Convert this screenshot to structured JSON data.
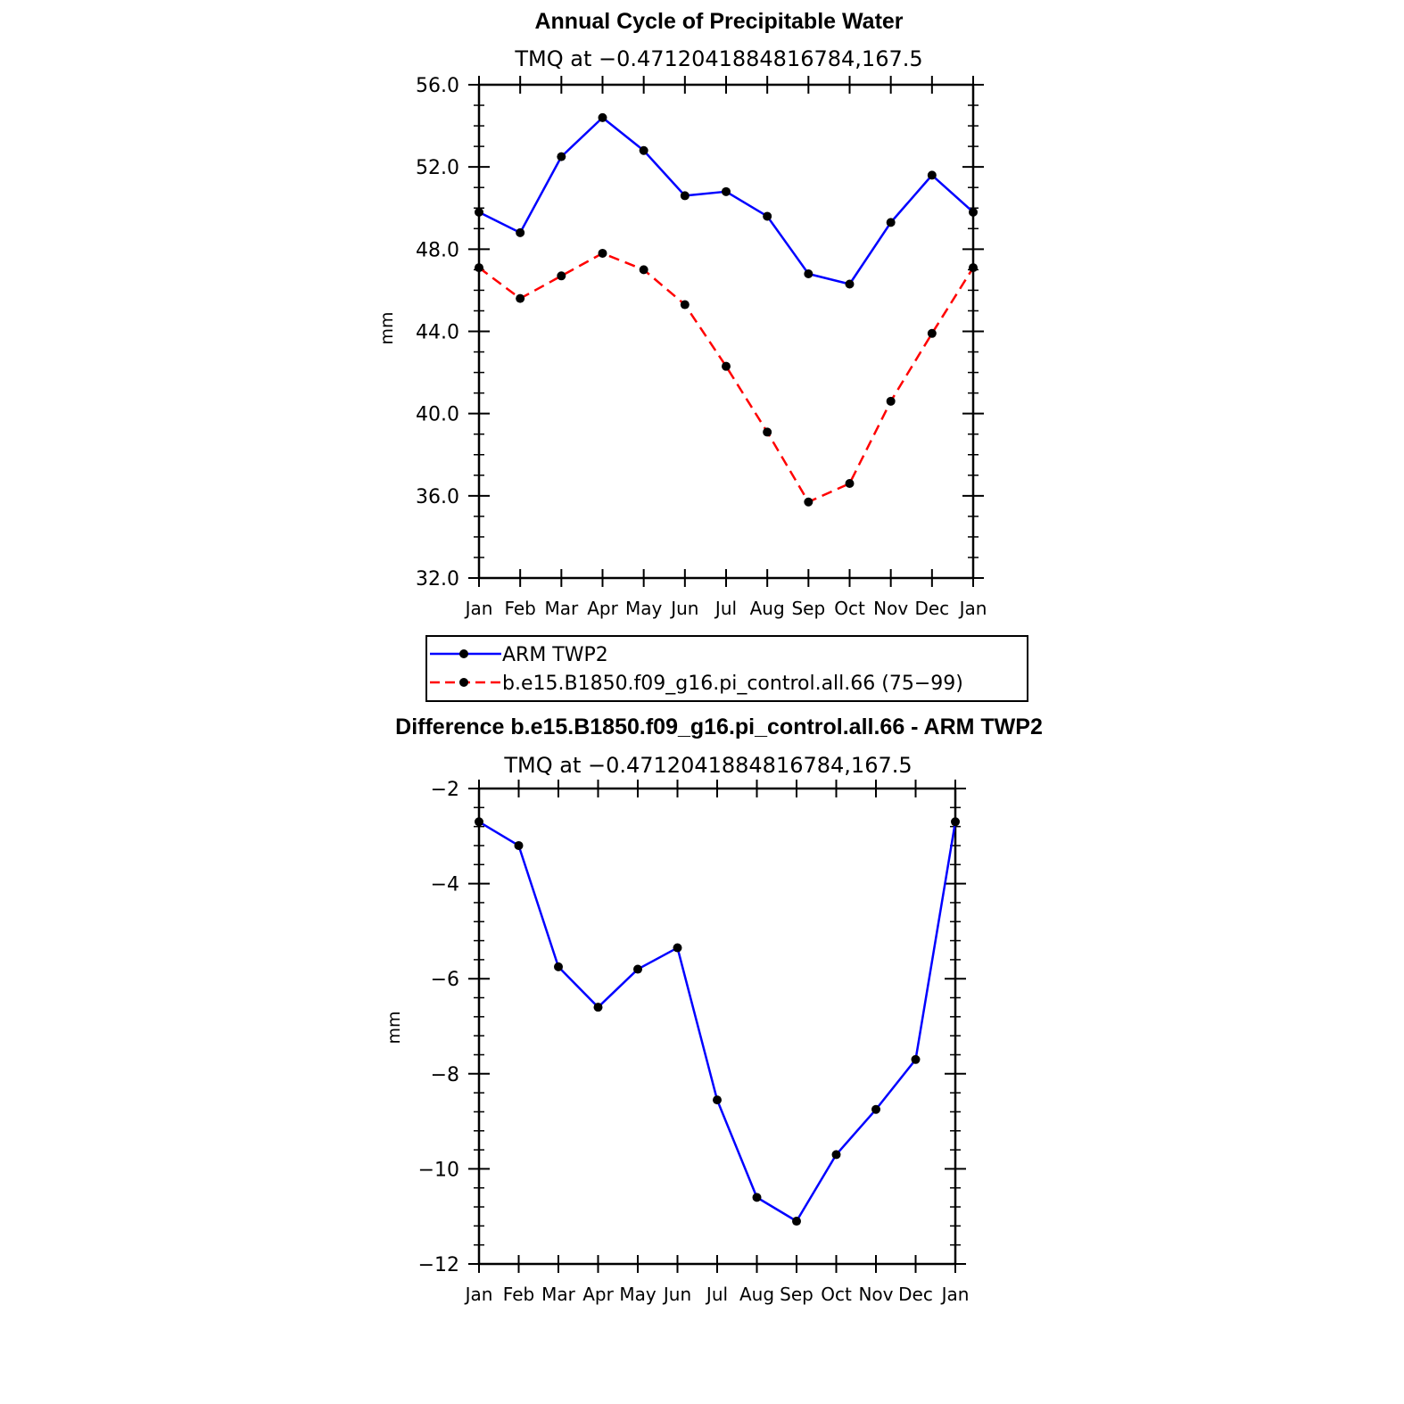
{
  "chart_data": [
    {
      "type": "line",
      "title": "Annual Cycle of Precipitable Water",
      "subtitle": "TMQ at −0.4712041884816784,167.5",
      "ylabel": "mm",
      "xlabel": "",
      "categories": [
        "Jan",
        "Feb",
        "Mar",
        "Apr",
        "May",
        "Jun",
        "Jul",
        "Aug",
        "Sep",
        "Oct",
        "Nov",
        "Dec",
        "Jan"
      ],
      "ylim": [
        32.0,
        56.0
      ],
      "yticks": [
        32.0,
        36.0,
        40.0,
        44.0,
        48.0,
        52.0,
        56.0
      ],
      "ytick_labels": [
        "32.0",
        "36.0",
        "40.0",
        "44.0",
        "48.0",
        "52.0",
        "56.0"
      ],
      "series": [
        {
          "name": "ARM TWP2",
          "color": "#0000ff",
          "dash": "solid",
          "values": [
            49.8,
            48.8,
            52.5,
            54.4,
            52.8,
            50.6,
            50.8,
            49.6,
            46.8,
            46.3,
            49.3,
            51.6,
            49.8
          ]
        },
        {
          "name": "b.e15.B1850.f09_g16.pi_control.all.66 (75−99)",
          "color": "#ff0000",
          "dash": "dashed",
          "values": [
            47.1,
            45.6,
            46.7,
            47.8,
            47.0,
            45.3,
            42.3,
            39.1,
            35.7,
            36.6,
            40.6,
            43.9,
            47.1
          ]
        }
      ],
      "legend": "bottom"
    },
    {
      "type": "line",
      "title": "Difference b.e15.B1850.f09_g16.pi_control.all.66 - ARM TWP2",
      "subtitle": "TMQ at −0.4712041884816784,167.5",
      "ylabel": "mm",
      "xlabel": "",
      "categories": [
        "Jan",
        "Feb",
        "Mar",
        "Apr",
        "May",
        "Jun",
        "Jul",
        "Aug",
        "Sep",
        "Oct",
        "Nov",
        "Dec",
        "Jan"
      ],
      "ylim": [
        -12,
        -2
      ],
      "yticks": [
        -12,
        -10,
        -8,
        -6,
        -4,
        -2
      ],
      "ytick_labels": [
        "−12",
        "−10",
        "−8",
        "−6",
        "−4",
        "−2"
      ],
      "series": [
        {
          "color": "#0000ff",
          "dash": "solid",
          "values": [
            -2.7,
            -3.2,
            -5.75,
            -6.6,
            -5.8,
            -5.35,
            -8.55,
            -10.6,
            -11.1,
            -9.7,
            -8.75,
            -7.7,
            -2.7
          ]
        }
      ]
    }
  ]
}
